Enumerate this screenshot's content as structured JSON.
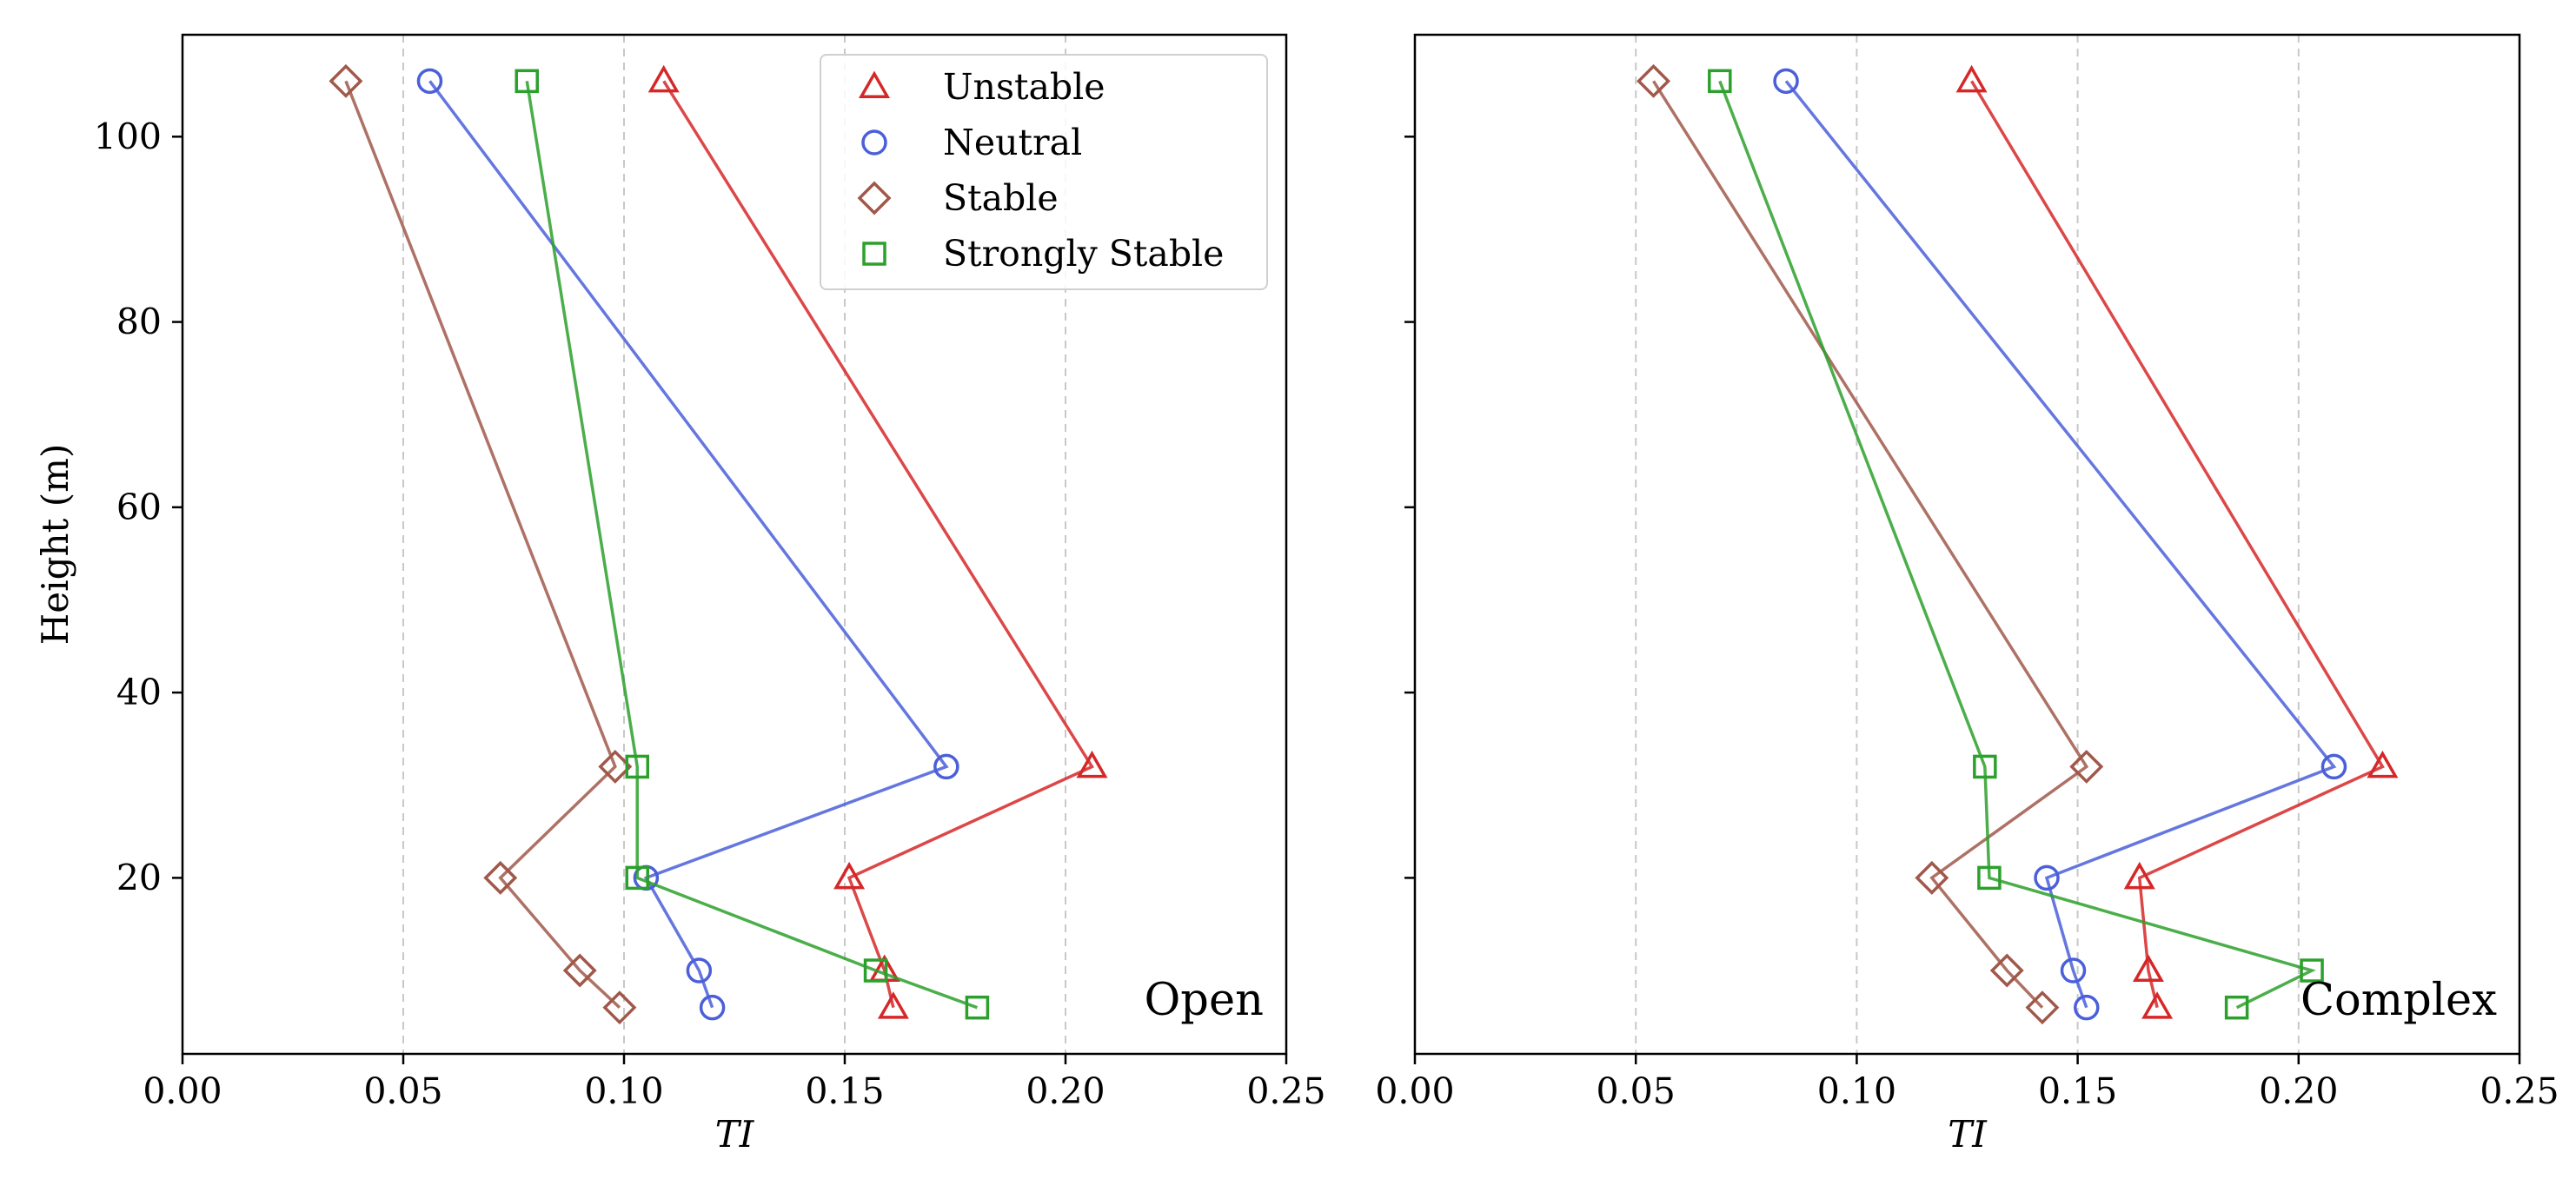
{
  "chart_data": [
    {
      "type": "line",
      "panel_label": "Open",
      "xlabel": "TI",
      "ylabel": "Height (m)",
      "xlim": [
        0.0,
        0.25
      ],
      "ylim": [
        1,
        111
      ],
      "xticks": [
        "0.00",
        "0.05",
        "0.10",
        "0.15",
        "0.20",
        "0.25"
      ],
      "yticks": [
        "20",
        "40",
        "60",
        "80",
        "100"
      ],
      "grid": "vertical dashed",
      "legend_position": "top-right",
      "series": [
        {
          "name": "Unstable",
          "color": "#d62728",
          "marker": "triangle",
          "points": [
            [
              0.161,
              6
            ],
            [
              0.159,
              10
            ],
            [
              0.151,
              20
            ],
            [
              0.206,
              32
            ],
            [
              0.109,
              106
            ]
          ]
        },
        {
          "name": "Neutral",
          "color": "#4a5fd9",
          "marker": "circle",
          "points": [
            [
              0.12,
              6
            ],
            [
              0.117,
              10
            ],
            [
              0.105,
              20
            ],
            [
              0.173,
              32
            ],
            [
              0.056,
              106
            ]
          ]
        },
        {
          "name": "Stable",
          "color": "#a0584a",
          "marker": "diamond",
          "points": [
            [
              0.099,
              6
            ],
            [
              0.09,
              10
            ],
            [
              0.072,
              20
            ],
            [
              0.098,
              32
            ],
            [
              0.037,
              106
            ]
          ]
        },
        {
          "name": "Strongly Stable",
          "color": "#2ca02c",
          "marker": "square",
          "points": [
            [
              0.18,
              6
            ],
            [
              0.157,
              10
            ],
            [
              0.103,
              20
            ],
            [
              0.103,
              32
            ],
            [
              0.078,
              106
            ]
          ]
        }
      ]
    },
    {
      "type": "line",
      "panel_label": "Complex",
      "xlabel": "TI",
      "ylabel": "",
      "xlim": [
        0.0,
        0.25
      ],
      "ylim": [
        1,
        111
      ],
      "xticks": [
        "0.00",
        "0.05",
        "0.10",
        "0.15",
        "0.20",
        "0.25"
      ],
      "yticks": [],
      "grid": "vertical dashed",
      "series": [
        {
          "name": "Unstable",
          "color": "#d62728",
          "marker": "triangle",
          "points": [
            [
              0.168,
              6
            ],
            [
              0.166,
              10
            ],
            [
              0.164,
              20
            ],
            [
              0.219,
              32
            ],
            [
              0.126,
              106
            ]
          ]
        },
        {
          "name": "Neutral",
          "color": "#4a5fd9",
          "marker": "circle",
          "points": [
            [
              0.152,
              6
            ],
            [
              0.149,
              10
            ],
            [
              0.143,
              20
            ],
            [
              0.208,
              32
            ],
            [
              0.084,
              106
            ]
          ]
        },
        {
          "name": "Stable",
          "color": "#a0584a",
          "marker": "diamond",
          "points": [
            [
              0.142,
              6
            ],
            [
              0.134,
              10
            ],
            [
              0.117,
              20
            ],
            [
              0.152,
              32
            ],
            [
              0.054,
              106
            ]
          ]
        },
        {
          "name": "Strongly Stable",
          "color": "#2ca02c",
          "marker": "square",
          "points": [
            [
              0.186,
              6
            ],
            [
              0.203,
              10
            ],
            [
              0.13,
              20
            ],
            [
              0.129,
              32
            ],
            [
              0.069,
              106
            ]
          ]
        }
      ]
    }
  ]
}
